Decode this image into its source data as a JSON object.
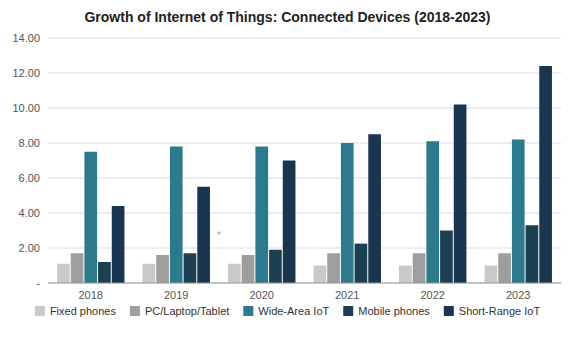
{
  "chart_data": {
    "type": "bar",
    "title": "Growth of Internet of Things: Connected Devices (2018-2023)",
    "categories": [
      "2018",
      "2019",
      "2020",
      "2021",
      "2022",
      "2023"
    ],
    "series": [
      {
        "name": "Fixed phones",
        "color": "#c9c9c9",
        "values": [
          1.1,
          1.1,
          1.1,
          1.0,
          1.0,
          1.0
        ]
      },
      {
        "name": "PC/Laptop/Tablet",
        "color": "#9e9e9e",
        "values": [
          1.7,
          1.6,
          1.6,
          1.7,
          1.7,
          1.7
        ]
      },
      {
        "name": "Wide-Area IoT",
        "color": "#2b7a8e",
        "values": [
          7.5,
          7.8,
          7.8,
          8.0,
          8.1,
          8.2
        ]
      },
      {
        "name": "Mobile phones",
        "color": "#1c3f52",
        "values": [
          1.2,
          1.7,
          1.9,
          2.25,
          3.0,
          3.3
        ]
      },
      {
        "name": "Short-Range IoT",
        "color": "#1a3550",
        "values": [
          4.4,
          5.5,
          7.0,
          8.5,
          10.2,
          12.4
        ]
      }
    ],
    "ylim": [
      0,
      14.0
    ],
    "yticks": [
      {
        "value": 0,
        "label": "-"
      },
      {
        "value": 2.0,
        "label": "2.00"
      },
      {
        "value": 4.0,
        "label": "4.00"
      },
      {
        "value": 6.0,
        "label": "6.00"
      },
      {
        "value": 8.0,
        "label": "8.00"
      },
      {
        "value": 10.0,
        "label": "10.00"
      },
      {
        "value": 12.0,
        "label": "12.00"
      },
      {
        "value": 14.0,
        "label": "14.00"
      }
    ],
    "grid": true,
    "legend": "bottom",
    "annotations": [
      "*"
    ]
  }
}
